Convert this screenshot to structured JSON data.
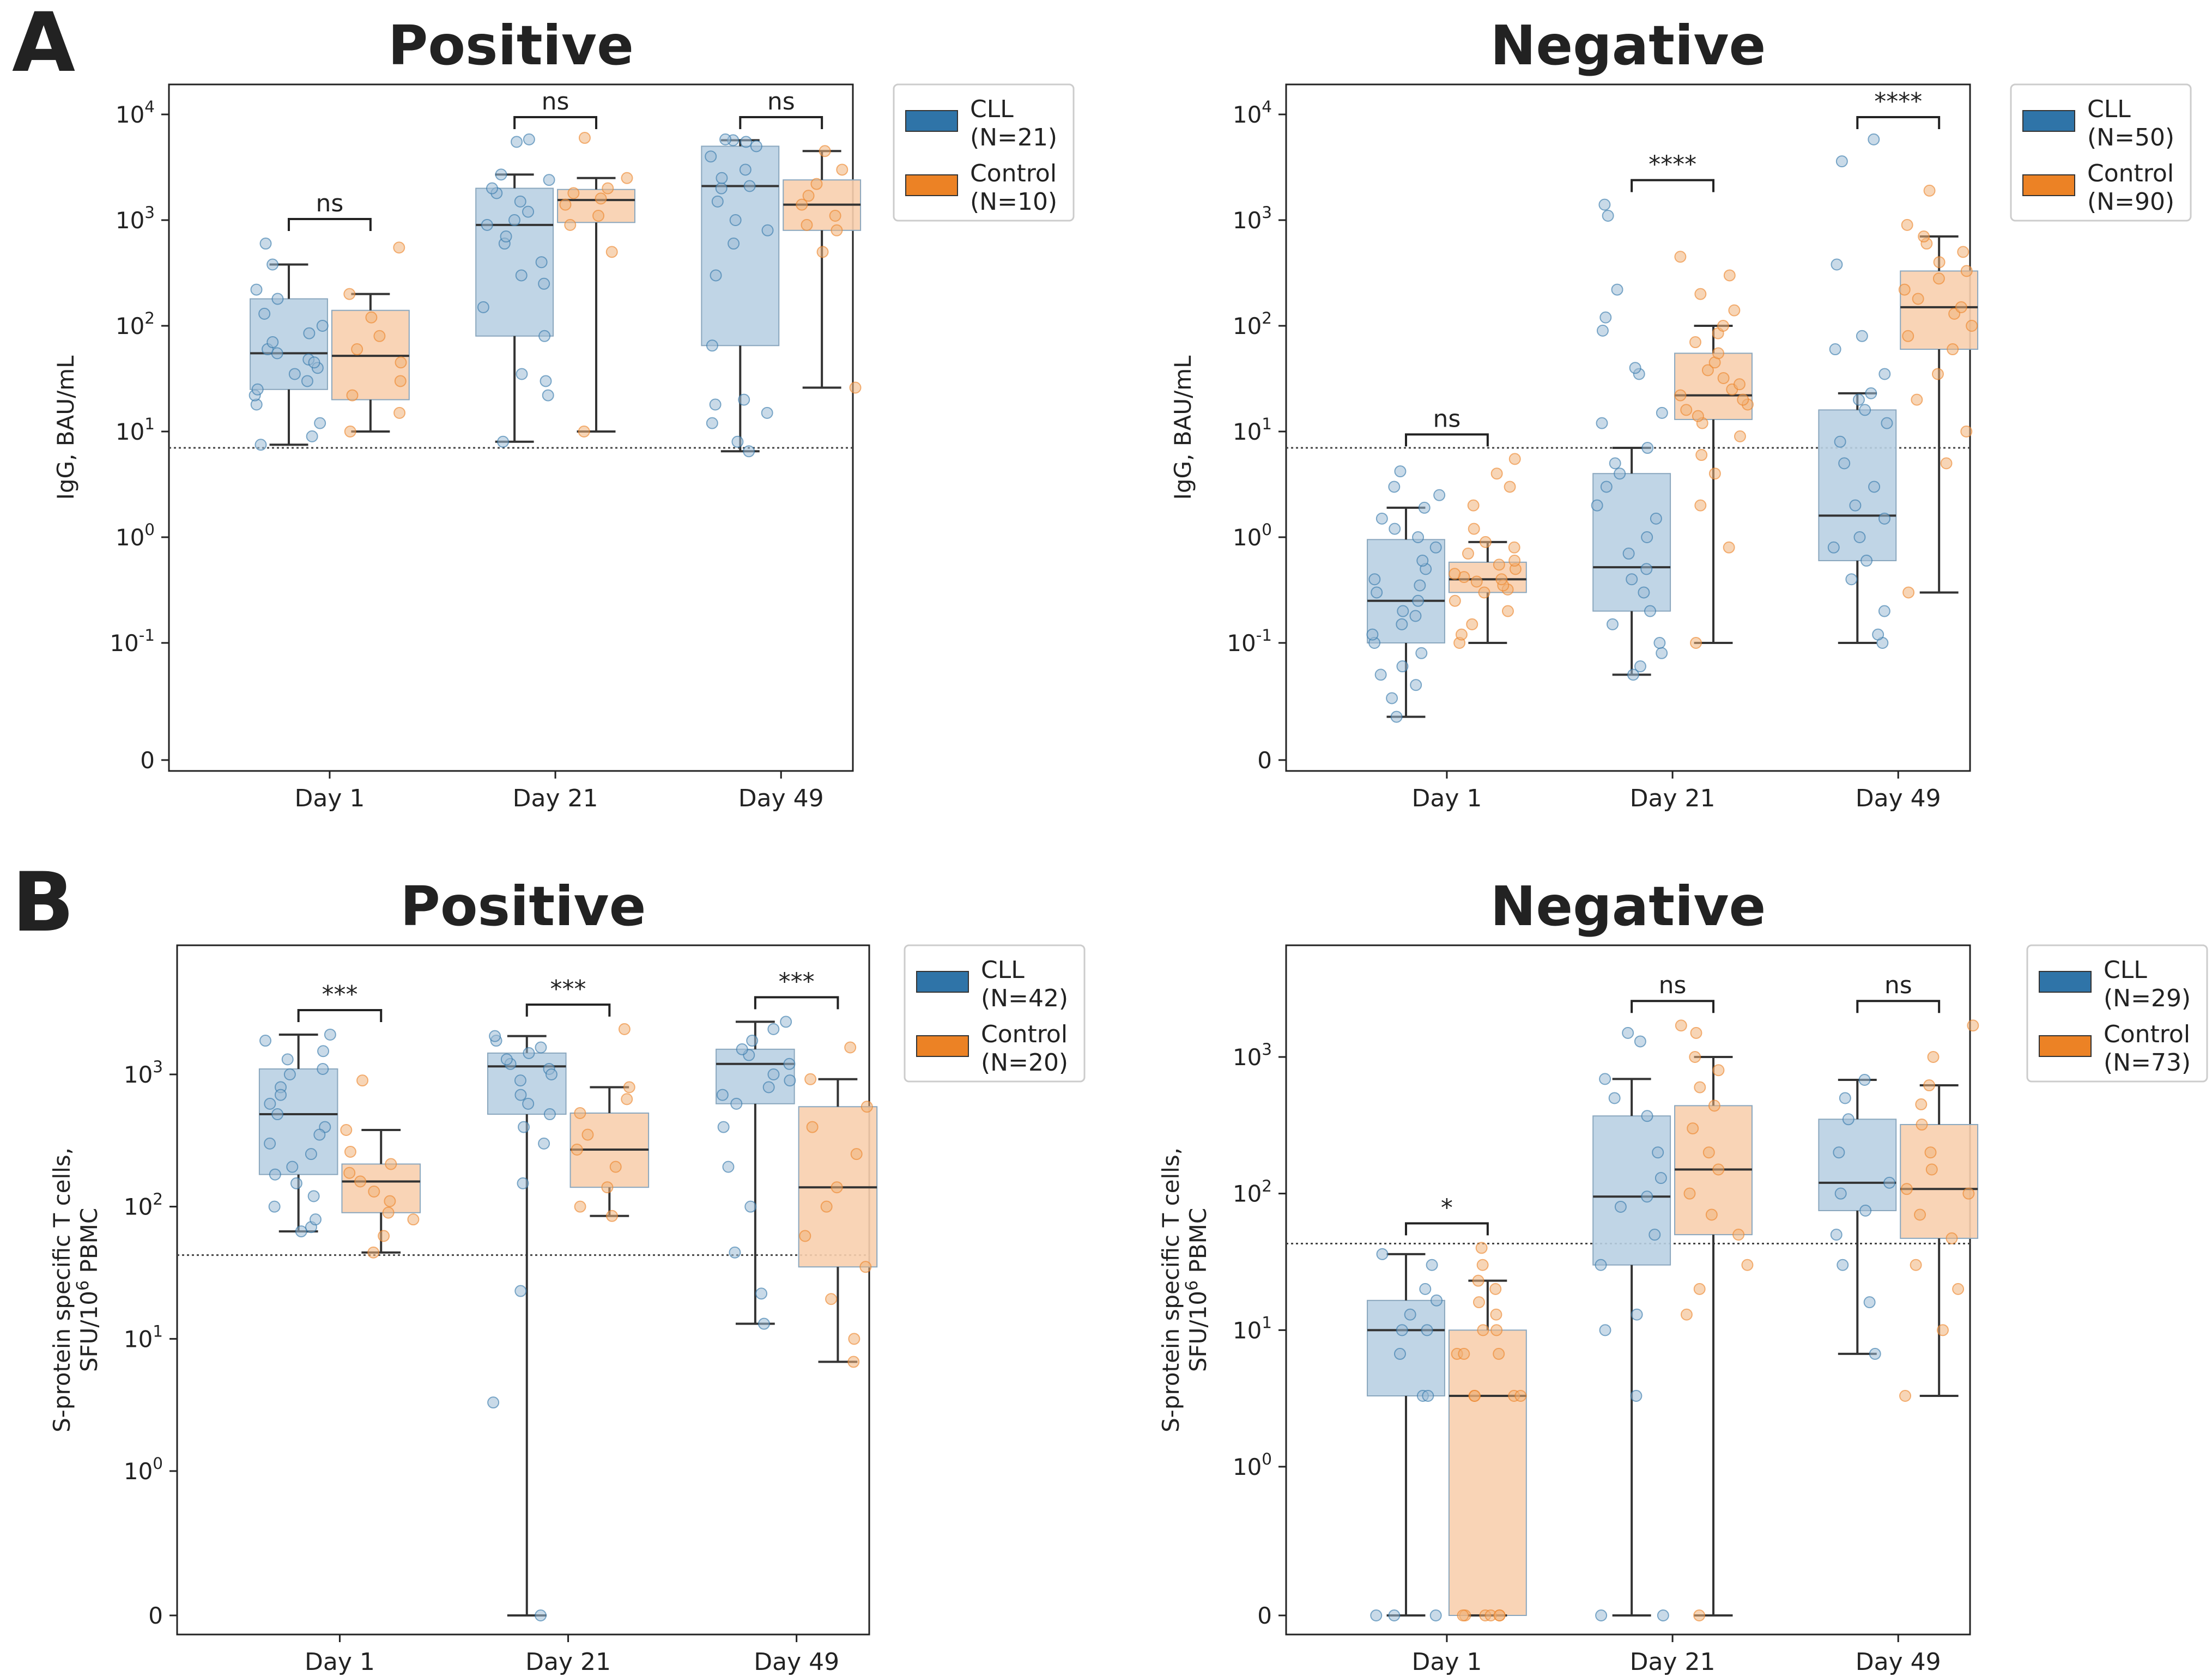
{
  "panel_letters": [
    "A",
    "B"
  ],
  "colors": {
    "cll": "#2f74a8",
    "control": "#ec8225",
    "cll_box": "#b9d0e3",
    "control_box": "#f8cfae",
    "cll_dot": "#9dbcd6",
    "control_dot": "#f0b27a"
  },
  "chart_data": [
    {
      "type": "box",
      "panel": "A",
      "title": "Positive",
      "ylabel": "IgG, BAU/mL",
      "yscale": "symlog",
      "yticks": [
        "0",
        "10^-1",
        "10^0",
        "10^1",
        "10^2",
        "10^3",
        "10^4"
      ],
      "ylim": [
        0,
        20000
      ],
      "threshold": 7,
      "categories": [
        "Day 1",
        "Day 21",
        "Day 49"
      ],
      "legend": [
        {
          "name": "CLL",
          "n": "(N=21)"
        },
        {
          "name": "Control",
          "n": "(N=10)"
        }
      ],
      "series": [
        {
          "name": "CLL",
          "boxes": [
            {
              "min": 7.5,
              "q1": 25,
              "median": 55,
              "q3": 180,
              "max": 380,
              "points": [
                7.5,
                9,
                12,
                18,
                22,
                25,
                30,
                35,
                40,
                48,
                55,
                60,
                70,
                85,
                100,
                130,
                180,
                220,
                380,
                600,
                45
              ]
            },
            {
              "min": 8,
              "q1": 80,
              "median": 900,
              "q3": 2000,
              "max": 2700,
              "points": [
                8,
                22,
                30,
                80,
                150,
                250,
                400,
                600,
                900,
                1200,
                1500,
                1800,
                2000,
                2400,
                2700,
                5500,
                5800,
                35,
                1000,
                700,
                300
              ]
            },
            {
              "min": 6.5,
              "q1": 65,
              "median": 2100,
              "q3": 5000,
              "max": 5700,
              "points": [
                6.5,
                8,
                12,
                18,
                20,
                65,
                300,
                1000,
                2000,
                2500,
                3000,
                4000,
                5000,
                5500,
                5700,
                5800,
                800,
                1500,
                600,
                2100,
                15
              ]
            }
          ]
        },
        {
          "name": "Control",
          "boxes": [
            {
              "min": 10,
              "q1": 20,
              "median": 52,
              "q3": 140,
              "max": 200,
              "points": [
                10,
                15,
                22,
                30,
                45,
                60,
                80,
                120,
                200,
                550
              ]
            },
            {
              "min": 10,
              "q1": 950,
              "median": 1550,
              "q3": 1950,
              "max": 2500,
              "points": [
                10,
                500,
                900,
                1100,
                1400,
                1600,
                1800,
                2000,
                2500,
                6000
              ]
            },
            {
              "min": 26,
              "q1": 800,
              "median": 1400,
              "q3": 2400,
              "max": 4500,
              "points": [
                26,
                500,
                800,
                1100,
                1400,
                1700,
                2200,
                3000,
                4500,
                900
              ]
            }
          ]
        }
      ],
      "significance": [
        "ns",
        "ns",
        "ns"
      ]
    },
    {
      "type": "box",
      "panel": "A",
      "title": "Negative",
      "ylabel": "IgG, BAU/mL",
      "yscale": "symlog",
      "yticks": [
        "0",
        "10^-1",
        "10^0",
        "10^1",
        "10^2",
        "10^3",
        "10^4"
      ],
      "ylim": [
        0,
        20000
      ],
      "threshold": 7,
      "categories": [
        "Day 1",
        "Day 21",
        "Day 49"
      ],
      "legend": [
        {
          "name": "CLL",
          "n": "(N=50)"
        },
        {
          "name": "Control",
          "n": "(N=90)"
        }
      ],
      "series": [
        {
          "name": "CLL",
          "boxes": [
            {
              "min": 0.02,
              "q1": 0.1,
              "median": 0.25,
              "q3": 0.95,
              "max": 1.9,
              "points": [
                0.02,
                0.03,
                0.04,
                0.05,
                0.06,
                0.08,
                0.1,
                0.12,
                0.15,
                0.18,
                0.2,
                0.25,
                0.3,
                0.35,
                0.4,
                0.5,
                0.6,
                0.8,
                1,
                1.2,
                1.5,
                1.9,
                2.5,
                3,
                4.2
              ]
            },
            {
              "min": 0.05,
              "q1": 0.2,
              "median": 0.52,
              "q3": 4,
              "max": 7,
              "points": [
                0.05,
                0.06,
                0.08,
                0.1,
                0.15,
                0.2,
                0.3,
                0.4,
                0.5,
                0.7,
                1,
                1.5,
                2,
                3,
                4,
                5,
                7,
                12,
                15,
                35,
                40,
                90,
                120,
                220,
                1100,
                1400
              ]
            },
            {
              "min": 0.1,
              "q1": 0.6,
              "median": 1.6,
              "q3": 16,
              "max": 23,
              "points": [
                0.1,
                0.12,
                0.2,
                0.4,
                0.6,
                0.8,
                1,
                1.5,
                2,
                3,
                5,
                8,
                12,
                16,
                20,
                23,
                35,
                60,
                80,
                380,
                3600,
                5800
              ]
            }
          ]
        },
        {
          "name": "Control",
          "boxes": [
            {
              "min": 0.1,
              "q1": 0.3,
              "median": 0.4,
              "q3": 0.58,
              "max": 0.9,
              "points": [
                0.1,
                0.12,
                0.15,
                0.2,
                0.25,
                0.3,
                0.32,
                0.35,
                0.38,
                0.4,
                0.42,
                0.45,
                0.5,
                0.55,
                0.6,
                0.7,
                0.8,
                0.9,
                1.2,
                2,
                3,
                4,
                5.5
              ]
            },
            {
              "min": 0.1,
              "q1": 13,
              "median": 22,
              "q3": 55,
              "max": 100,
              "points": [
                0.1,
                0.8,
                2,
                4,
                6,
                9,
                12,
                14,
                16,
                18,
                20,
                22,
                25,
                28,
                32,
                38,
                45,
                55,
                70,
                85,
                100,
                140,
                200,
                300,
                450
              ]
            },
            {
              "min": 0.3,
              "q1": 60,
              "median": 150,
              "q3": 330,
              "max": 700,
              "points": [
                0.3,
                5,
                10,
                20,
                35,
                60,
                80,
                100,
                130,
                150,
                180,
                220,
                280,
                330,
                400,
                500,
                600,
                700,
                900,
                1900
              ]
            }
          ]
        }
      ],
      "significance": [
        "ns",
        "****",
        "****"
      ]
    },
    {
      "type": "box",
      "panel": "B",
      "title": "Positive",
      "ylabel": "S-protein specific T cells, SFU/10^6 PBMC",
      "yscale": "symlog",
      "yticks": [
        "0",
        "10^0",
        "10^1",
        "10^2",
        "10^3"
      ],
      "ylim": [
        0,
        8000
      ],
      "threshold": 43,
      "categories": [
        "Day 1",
        "Day 21",
        "Day 49"
      ],
      "legend": [
        {
          "name": "CLL",
          "n": "(N=42)"
        },
        {
          "name": "Control",
          "n": "(N=20)"
        }
      ],
      "series": [
        {
          "name": "CLL",
          "boxes": [
            {
              "min": 65,
              "q1": 175,
              "median": 500,
              "q3": 1100,
              "max": 2000,
              "points": [
                65,
                70,
                80,
                100,
                120,
                150,
                175,
                200,
                250,
                300,
                400,
                500,
                600,
                800,
                1000,
                1100,
                1300,
                1500,
                1800,
                2000,
                700,
                350
              ]
            },
            {
              "min": 0,
              "q1": 500,
              "median": 1150,
              "q3": 1450,
              "max": 1950,
              "points": [
                0,
                3.3,
                23,
                150,
                300,
                400,
                500,
                700,
                900,
                1100,
                1200,
                1300,
                1450,
                1600,
                1800,
                1950,
                1000,
                600
              ]
            },
            {
              "min": 13,
              "q1": 600,
              "median": 1200,
              "q3": 1550,
              "max": 2500,
              "points": [
                13,
                22,
                45,
                100,
                200,
                400,
                600,
                800,
                1000,
                1200,
                1400,
                1550,
                1800,
                2200,
                2500,
                900,
                700
              ]
            }
          ]
        },
        {
          "name": "Control",
          "boxes": [
            {
              "min": 45,
              "q1": 90,
              "median": 155,
              "q3": 210,
              "max": 380,
              "points": [
                45,
                60,
                80,
                90,
                110,
                130,
                155,
                180,
                210,
                260,
                380,
                900
              ]
            },
            {
              "min": 85,
              "q1": 140,
              "median": 270,
              "q3": 510,
              "max": 800,
              "points": [
                85,
                100,
                140,
                200,
                270,
                350,
                510,
                650,
                800,
                2200
              ]
            },
            {
              "min": 6.7,
              "q1": 35,
              "median": 140,
              "q3": 570,
              "max": 920,
              "points": [
                6.7,
                10,
                20,
                35,
                60,
                100,
                140,
                250,
                400,
                570,
                920,
                1600
              ]
            }
          ]
        }
      ],
      "significance": [
        "***",
        "***",
        "***"
      ]
    },
    {
      "type": "box",
      "panel": "B",
      "title": "Negative",
      "ylabel": "S-protein specific T cells, SFU/10^6 PBMC",
      "yscale": "symlog",
      "yticks": [
        "0",
        "10^0",
        "10^1",
        "10^2",
        "10^3"
      ],
      "ylim": [
        0,
        8000
      ],
      "threshold": 43,
      "categories": [
        "Day 1",
        "Day 21",
        "Day 49"
      ],
      "legend": [
        {
          "name": "CLL",
          "n": "(N=29)"
        },
        {
          "name": "Control",
          "n": "(N=73)"
        }
      ],
      "series": [
        {
          "name": "CLL",
          "boxes": [
            {
              "min": 0,
              "q1": 3.3,
              "median": 10,
              "q3": 16.5,
              "max": 36,
              "points": [
                0,
                0,
                0,
                3.3,
                3.3,
                6.7,
                10,
                10,
                13,
                16.5,
                20,
                30,
                36
              ]
            },
            {
              "min": 0,
              "q1": 30,
              "median": 95,
              "q3": 370,
              "max": 690,
              "points": [
                0,
                0,
                3.3,
                10,
                13,
                30,
                50,
                80,
                95,
                130,
                200,
                370,
                500,
                690,
                1300,
                1500
              ]
            },
            {
              "min": 6.7,
              "q1": 75,
              "median": 120,
              "q3": 350,
              "max": 680,
              "points": [
                6.7,
                16,
                30,
                50,
                75,
                100,
                120,
                200,
                350,
                500,
                680
              ]
            }
          ]
        },
        {
          "name": "Control",
          "boxes": [
            {
              "min": 0,
              "q1": 0,
              "median": 3.3,
              "q3": 10,
              "max": 23,
              "points": [
                0,
                0,
                0,
                0,
                0,
                0,
                3.3,
                3.3,
                3.3,
                3.3,
                6.7,
                6.7,
                6.7,
                10,
                10,
                13,
                16,
                20,
                23,
                30,
                40
              ]
            },
            {
              "min": 0,
              "q1": 50,
              "median": 150,
              "q3": 440,
              "max": 1000,
              "points": [
                0,
                13,
                20,
                30,
                50,
                70,
                100,
                150,
                200,
                300,
                440,
                600,
                800,
                1000,
                1500,
                1700
              ]
            },
            {
              "min": 3.3,
              "q1": 47,
              "median": 108,
              "q3": 320,
              "max": 620,
              "points": [
                3.3,
                10,
                20,
                30,
                47,
                70,
                100,
                108,
                150,
                200,
                320,
                450,
                620,
                1000,
                1700
              ]
            }
          ]
        }
      ],
      "significance": [
        "*",
        "ns",
        "ns"
      ]
    }
  ]
}
